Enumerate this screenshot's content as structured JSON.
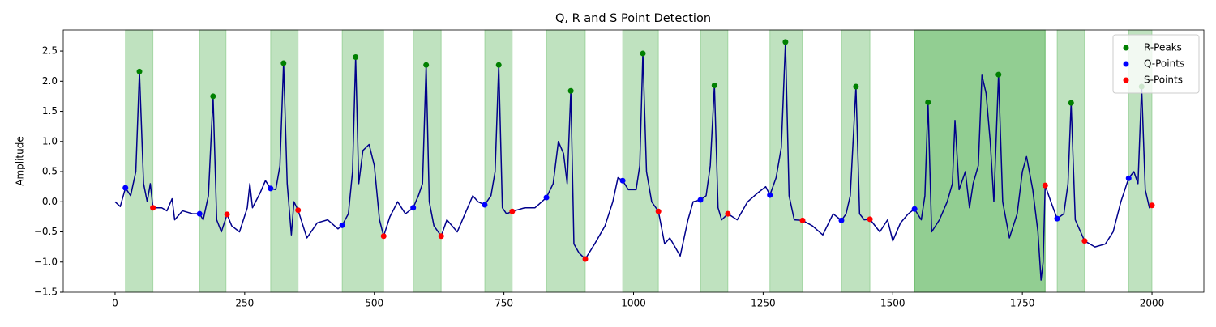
{
  "chart_data": {
    "type": "line",
    "title": "Q, R and S Point Detection",
    "y_label": "Amplitude",
    "xlim": [
      -100,
      2100
    ],
    "ylim": [
      -1.5,
      2.85
    ],
    "xticks": [
      0,
      250,
      500,
      750,
      1000,
      1250,
      1500,
      1750,
      2000
    ],
    "yticks": [
      {
        "value": -1.5,
        "label": "−1.5"
      },
      {
        "value": -1.0,
        "label": "−1.0"
      },
      {
        "value": -0.5,
        "label": "−0.5"
      },
      {
        "value": 0,
        "label": "0.0"
      },
      0.5,
      {
        "value": 1.0,
        "label": "1.0"
      },
      1.5,
      {
        "value": 2.0,
        "label": "2.0"
      },
      2.5
    ],
    "legend": "upper right",
    "span_color": "#2ca02c",
    "spans": [
      [
        20,
        73
      ],
      [
        163,
        214
      ],
      [
        300,
        353
      ],
      [
        438,
        518
      ],
      [
        575,
        629
      ],
      [
        713,
        766
      ],
      [
        832,
        907
      ],
      [
        979,
        1048
      ],
      [
        1129,
        1182
      ],
      [
        1263,
        1326
      ],
      [
        1401,
        1456
      ],
      [
        1542,
        1794
      ],
      [
        1542,
        1794
      ],
      [
        1817,
        1870
      ],
      [
        1955,
        2000
      ]
    ],
    "signal": {
      "color": "#00008b",
      "x": [
        0,
        10,
        20,
        30,
        40,
        47,
        55,
        62,
        68,
        73,
        90,
        100,
        110,
        115,
        130,
        150,
        163,
        170,
        180,
        189,
        196,
        205,
        216,
        225,
        240,
        255,
        260,
        265,
        280,
        290,
        300,
        310,
        318,
        325,
        332,
        340,
        345,
        353,
        370,
        390,
        410,
        430,
        438,
        450,
        458,
        464,
        470,
        478,
        490,
        500,
        510,
        518,
        530,
        545,
        560,
        575,
        585,
        593,
        600,
        606,
        615,
        629,
        640,
        660,
        680,
        690,
        700,
        713,
        725,
        733,
        740,
        747,
        755,
        766,
        790,
        810,
        832,
        845,
        855,
        865,
        872,
        879,
        885,
        895,
        907,
        925,
        945,
        960,
        970,
        979,
        990,
        1005,
        1012,
        1018,
        1025,
        1035,
        1048,
        1060,
        1070,
        1090,
        1105,
        1115,
        1129,
        1140,
        1148,
        1156,
        1163,
        1170,
        1182,
        1200,
        1220,
        1240,
        1255,
        1263,
        1275,
        1285,
        1293,
        1300,
        1310,
        1326,
        1345,
        1365,
        1385,
        1401,
        1410,
        1418,
        1429,
        1436,
        1445,
        1456,
        1475,
        1490,
        1500,
        1515,
        1530,
        1542,
        1555,
        1562,
        1568,
        1575,
        1590,
        1605,
        1615,
        1620,
        1628,
        1640,
        1648,
        1655,
        1665,
        1672,
        1680,
        1688,
        1695,
        1704,
        1712,
        1725,
        1740,
        1750,
        1758,
        1770,
        1780,
        1786,
        1790,
        1794,
        1805,
        1817,
        1830,
        1838,
        1844,
        1852,
        1870,
        1890,
        1910,
        1925,
        1940,
        1955,
        1965,
        1973,
        1980,
        1987,
        1995,
        2000
      ],
      "y": [
        0,
        -0.08,
        0.23,
        0.1,
        0.5,
        2.16,
        0.3,
        0.0,
        0.3,
        -0.1,
        -0.1,
        -0.15,
        0.05,
        -0.3,
        -0.15,
        -0.2,
        -0.2,
        -0.3,
        0.1,
        1.75,
        -0.3,
        -0.5,
        -0.21,
        -0.4,
        -0.5,
        -0.1,
        0.3,
        -0.1,
        0.15,
        0.35,
        0.22,
        0.2,
        0.6,
        2.3,
        0.3,
        -0.55,
        0.0,
        -0.14,
        -0.6,
        -0.35,
        -0.3,
        -0.45,
        -0.39,
        -0.2,
        0.5,
        2.4,
        0.3,
        0.85,
        0.95,
        0.6,
        -0.3,
        -0.57,
        -0.25,
        0.0,
        -0.2,
        -0.1,
        0.1,
        0.3,
        2.27,
        0.0,
        -0.4,
        -0.57,
        -0.3,
        -0.5,
        -0.1,
        0.1,
        0.0,
        -0.05,
        0.1,
        0.5,
        2.27,
        -0.1,
        -0.2,
        -0.16,
        -0.1,
        -0.1,
        0.07,
        0.3,
        1.0,
        0.8,
        0.3,
        1.84,
        -0.7,
        -0.85,
        -0.95,
        -0.7,
        -0.4,
        0.0,
        0.4,
        0.35,
        0.2,
        0.2,
        0.6,
        2.46,
        0.5,
        0.0,
        -0.16,
        -0.7,
        -0.6,
        -0.9,
        -0.3,
        0.0,
        0.03,
        0.1,
        0.6,
        1.93,
        -0.1,
        -0.3,
        -0.2,
        -0.3,
        0.0,
        0.15,
        0.25,
        0.11,
        0.4,
        0.9,
        2.65,
        0.1,
        -0.3,
        -0.31,
        -0.4,
        -0.55,
        -0.2,
        -0.31,
        -0.2,
        0.1,
        1.91,
        -0.2,
        -0.3,
        -0.29,
        -0.5,
        -0.3,
        -0.65,
        -0.35,
        -0.2,
        -0.12,
        -0.3,
        0.1,
        1.65,
        -0.5,
        -0.3,
        0.0,
        0.3,
        1.35,
        0.2,
        0.5,
        -0.1,
        0.3,
        0.6,
        2.1,
        1.8,
        1.0,
        0.0,
        2.11,
        0.0,
        -0.6,
        -0.2,
        0.5,
        0.75,
        0.2,
        -0.5,
        -1.3,
        -1.0,
        0.27,
        0.0,
        -0.28,
        -0.2,
        0.3,
        1.64,
        -0.3,
        -0.65,
        -0.75,
        -0.7,
        -0.5,
        0.0,
        0.39,
        0.5,
        0.3,
        1.91,
        0.2,
        -0.1,
        -0.06
      ]
    },
    "series": [
      {
        "name": "R-Peaks",
        "color": "#008000",
        "x": [
          47,
          189,
          325,
          464,
          600,
          740,
          879,
          1018,
          1156,
          1293,
          1429,
          1568,
          1704,
          1844,
          1980
        ],
        "values": [
          2.16,
          1.75,
          2.3,
          2.4,
          2.27,
          2.27,
          1.84,
          2.46,
          1.93,
          2.65,
          1.91,
          1.65,
          2.11,
          1.64,
          1.91
        ]
      },
      {
        "name": "Q-Points",
        "color": "#0000ff",
        "x": [
          20,
          163,
          300,
          438,
          575,
          713,
          832,
          979,
          1129,
          1263,
          1401,
          1542,
          1817,
          1955
        ],
        "values": [
          0.23,
          -0.2,
          0.22,
          -0.39,
          -0.1,
          -0.05,
          0.07,
          0.35,
          0.03,
          0.11,
          -0.31,
          -0.12,
          -0.28,
          0.39
        ]
      },
      {
        "name": "S-Points",
        "color": "#ff0000",
        "x": [
          73,
          216,
          353,
          518,
          629,
          766,
          907,
          1048,
          1182,
          1326,
          1456,
          1794,
          1870,
          2000
        ],
        "values": [
          -0.1,
          -0.21,
          -0.14,
          -0.57,
          -0.57,
          -0.16,
          -0.95,
          -0.16,
          -0.2,
          -0.31,
          -0.29,
          0.27,
          -0.65,
          -0.06
        ]
      }
    ]
  }
}
